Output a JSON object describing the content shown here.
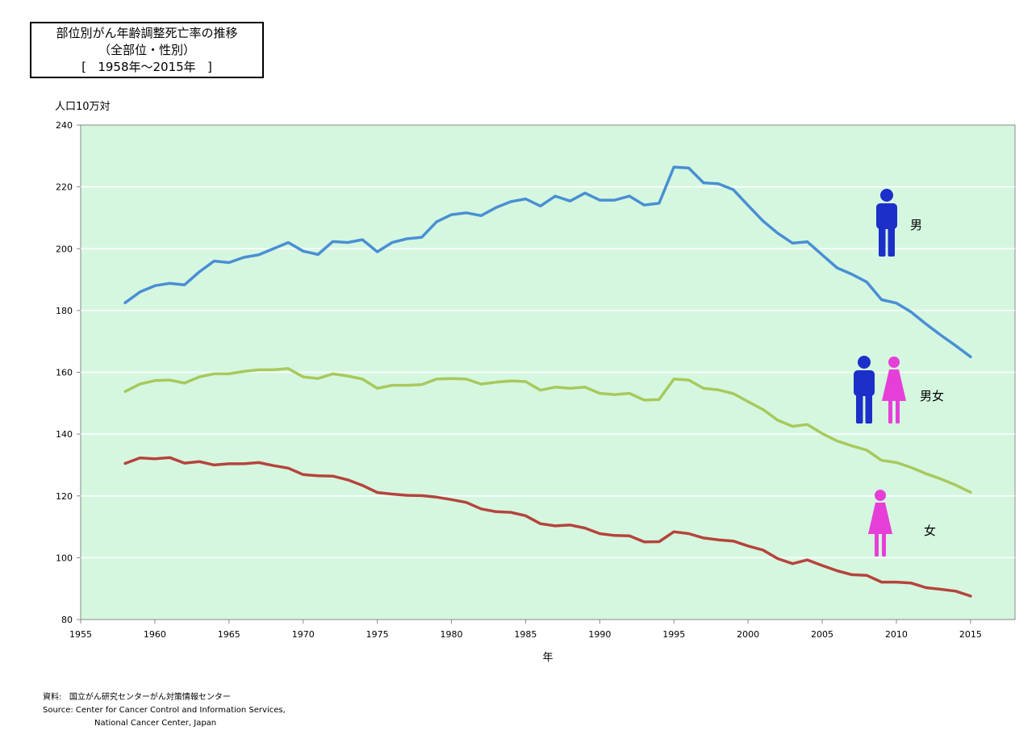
{
  "title": {
    "line1": "部位別がん年齢調整死亡率の推移",
    "line2": "（全部位・性別）",
    "line3": "[   1958年～2015年   ]"
  },
  "source": {
    "jp": "資料:   国立がん研究センターがん対策情報センター",
    "en1": "Source: Center for Cancer Control and Information Services,",
    "en2": "National Cancer Center, Japan"
  },
  "chart_data": {
    "type": "line",
    "title": "部位別がん年齢調整死亡率の推移",
    "xlabel": "年",
    "ylabel": "人口10万対",
    "xlim": [
      1955,
      2018
    ],
    "ylim": [
      80,
      240
    ],
    "xticks": [
      1955,
      1960,
      1965,
      1970,
      1975,
      1980,
      1985,
      1990,
      1995,
      2000,
      2005,
      2010,
      2015
    ],
    "yticks": [
      80,
      100,
      120,
      140,
      160,
      180,
      200,
      220,
      240
    ],
    "grid": "horizontal",
    "background": "#d5f7e0",
    "x": [
      1958,
      1959,
      1960,
      1961,
      1962,
      1963,
      1964,
      1965,
      1966,
      1967,
      1968,
      1969,
      1970,
      1971,
      1972,
      1973,
      1974,
      1975,
      1976,
      1977,
      1978,
      1979,
      1980,
      1981,
      1982,
      1983,
      1984,
      1985,
      1986,
      1987,
      1988,
      1989,
      1990,
      1991,
      1992,
      1993,
      1994,
      1995,
      1996,
      1997,
      1998,
      1999,
      2000,
      2001,
      2002,
      2003,
      2004,
      2005,
      2006,
      2007,
      2008,
      2009,
      2010,
      2011,
      2012,
      2013,
      2014,
      2015
    ],
    "series": [
      {
        "name": "男",
        "color": "#4a8fd4",
        "icon": "male-figure",
        "values": [
          182.5,
          186,
          188,
          188.8,
          188.3,
          192.5,
          196,
          195.5,
          197.2,
          198,
          200,
          202,
          199.2,
          198.1,
          202.3,
          202,
          202.9,
          199,
          202,
          203.2,
          203.7,
          208.7,
          211,
          211.6,
          210.7,
          213.3,
          215.2,
          216.1,
          213.8,
          217,
          215.4,
          218,
          215.7,
          215.7,
          217,
          214.1,
          214.7,
          226.4,
          226.1,
          221.3,
          221,
          219.1,
          214,
          209,
          205,
          201.8,
          202.2,
          198,
          193.8,
          191.7,
          189.2,
          183.5,
          182.4,
          179.5,
          175.6,
          172,
          168.6,
          165
        ]
      },
      {
        "name": "男女",
        "color": "#a8c95c",
        "icon": "male-female-figures",
        "values": [
          153.8,
          156.2,
          157.3,
          157.5,
          156.5,
          158.5,
          159.5,
          159.5,
          160.3,
          160.8,
          160.8,
          161.2,
          158.5,
          158,
          159.5,
          158.8,
          157.8,
          154.8,
          155.8,
          155.8,
          156,
          157.8,
          158,
          157.8,
          156.2,
          156.8,
          157.2,
          157,
          154.2,
          155.2,
          154.8,
          155.2,
          153.2,
          152.8,
          153.2,
          151,
          151.2,
          157.8,
          157.5,
          154.8,
          154.3,
          153.1,
          150.5,
          148,
          144.5,
          142.5,
          143.1,
          140.2,
          137.8,
          136.2,
          134.8,
          131.5,
          130.8,
          129.2,
          127.2,
          125.5,
          123.5,
          121.2
        ]
      },
      {
        "name": "女",
        "color": "#b5443c",
        "icon": "female-figure",
        "values": [
          130.5,
          132.3,
          132,
          132.4,
          130.6,
          131.1,
          130,
          130.4,
          130.4,
          130.8,
          129.8,
          129,
          126.9,
          126.5,
          126.4,
          125.2,
          123.4,
          121.1,
          120.6,
          120.2,
          120.1,
          119.6,
          118.8,
          117.9,
          115.8,
          114.9,
          114.7,
          113.6,
          111,
          110.3,
          110.6,
          109.6,
          107.8,
          107.2,
          107.1,
          105.1,
          105.2,
          108.4,
          107.8,
          106.4,
          105.8,
          105.4,
          103.8,
          102.5,
          99.7,
          98.1,
          99.3,
          97.5,
          95.8,
          94.5,
          94.3,
          92.1,
          92.1,
          91.8,
          90.3,
          89.8,
          89.2,
          87.6
        ]
      }
    ],
    "labels_note": "series labels drawn next to figure icons at right of plot"
  }
}
